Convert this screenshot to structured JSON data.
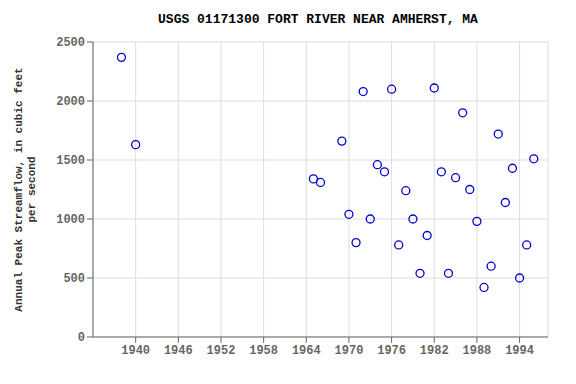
{
  "chart_data": {
    "type": "scatter",
    "title": "USGS 01171300 FORT RIVER NEAR AMHERST, MA",
    "ylabel": "Annual Peak Streamflow, in cubic feet\nper second",
    "x": [
      1938,
      1940,
      1965,
      1966,
      1969,
      1970,
      1971,
      1972,
      1973,
      1974,
      1975,
      1976,
      1977,
      1978,
      1979,
      1980,
      1981,
      1982,
      1983,
      1984,
      1985,
      1986,
      1987,
      1988,
      1989,
      1990,
      1991,
      1992,
      1993,
      1994,
      1995,
      1996
    ],
    "values": [
      2370,
      1630,
      1340,
      1310,
      1660,
      1040,
      800,
      2080,
      1000,
      1460,
      1400,
      2100,
      780,
      1240,
      1000,
      540,
      860,
      2110,
      1400,
      540,
      1350,
      1900,
      1250,
      980,
      420,
      600,
      1720,
      1140,
      1430,
      500,
      780,
      1510
    ],
    "xlim": [
      1934,
      1998
    ],
    "ylim": [
      0,
      2500
    ],
    "xticks": [
      1940,
      1946,
      1952,
      1958,
      1964,
      1970,
      1976,
      1982,
      1988,
      1994
    ],
    "yticks": [
      0,
      500,
      1000,
      1500,
      2000,
      2500
    ],
    "color": "#0000cc",
    "marker": "open_circle",
    "grid": true
  }
}
